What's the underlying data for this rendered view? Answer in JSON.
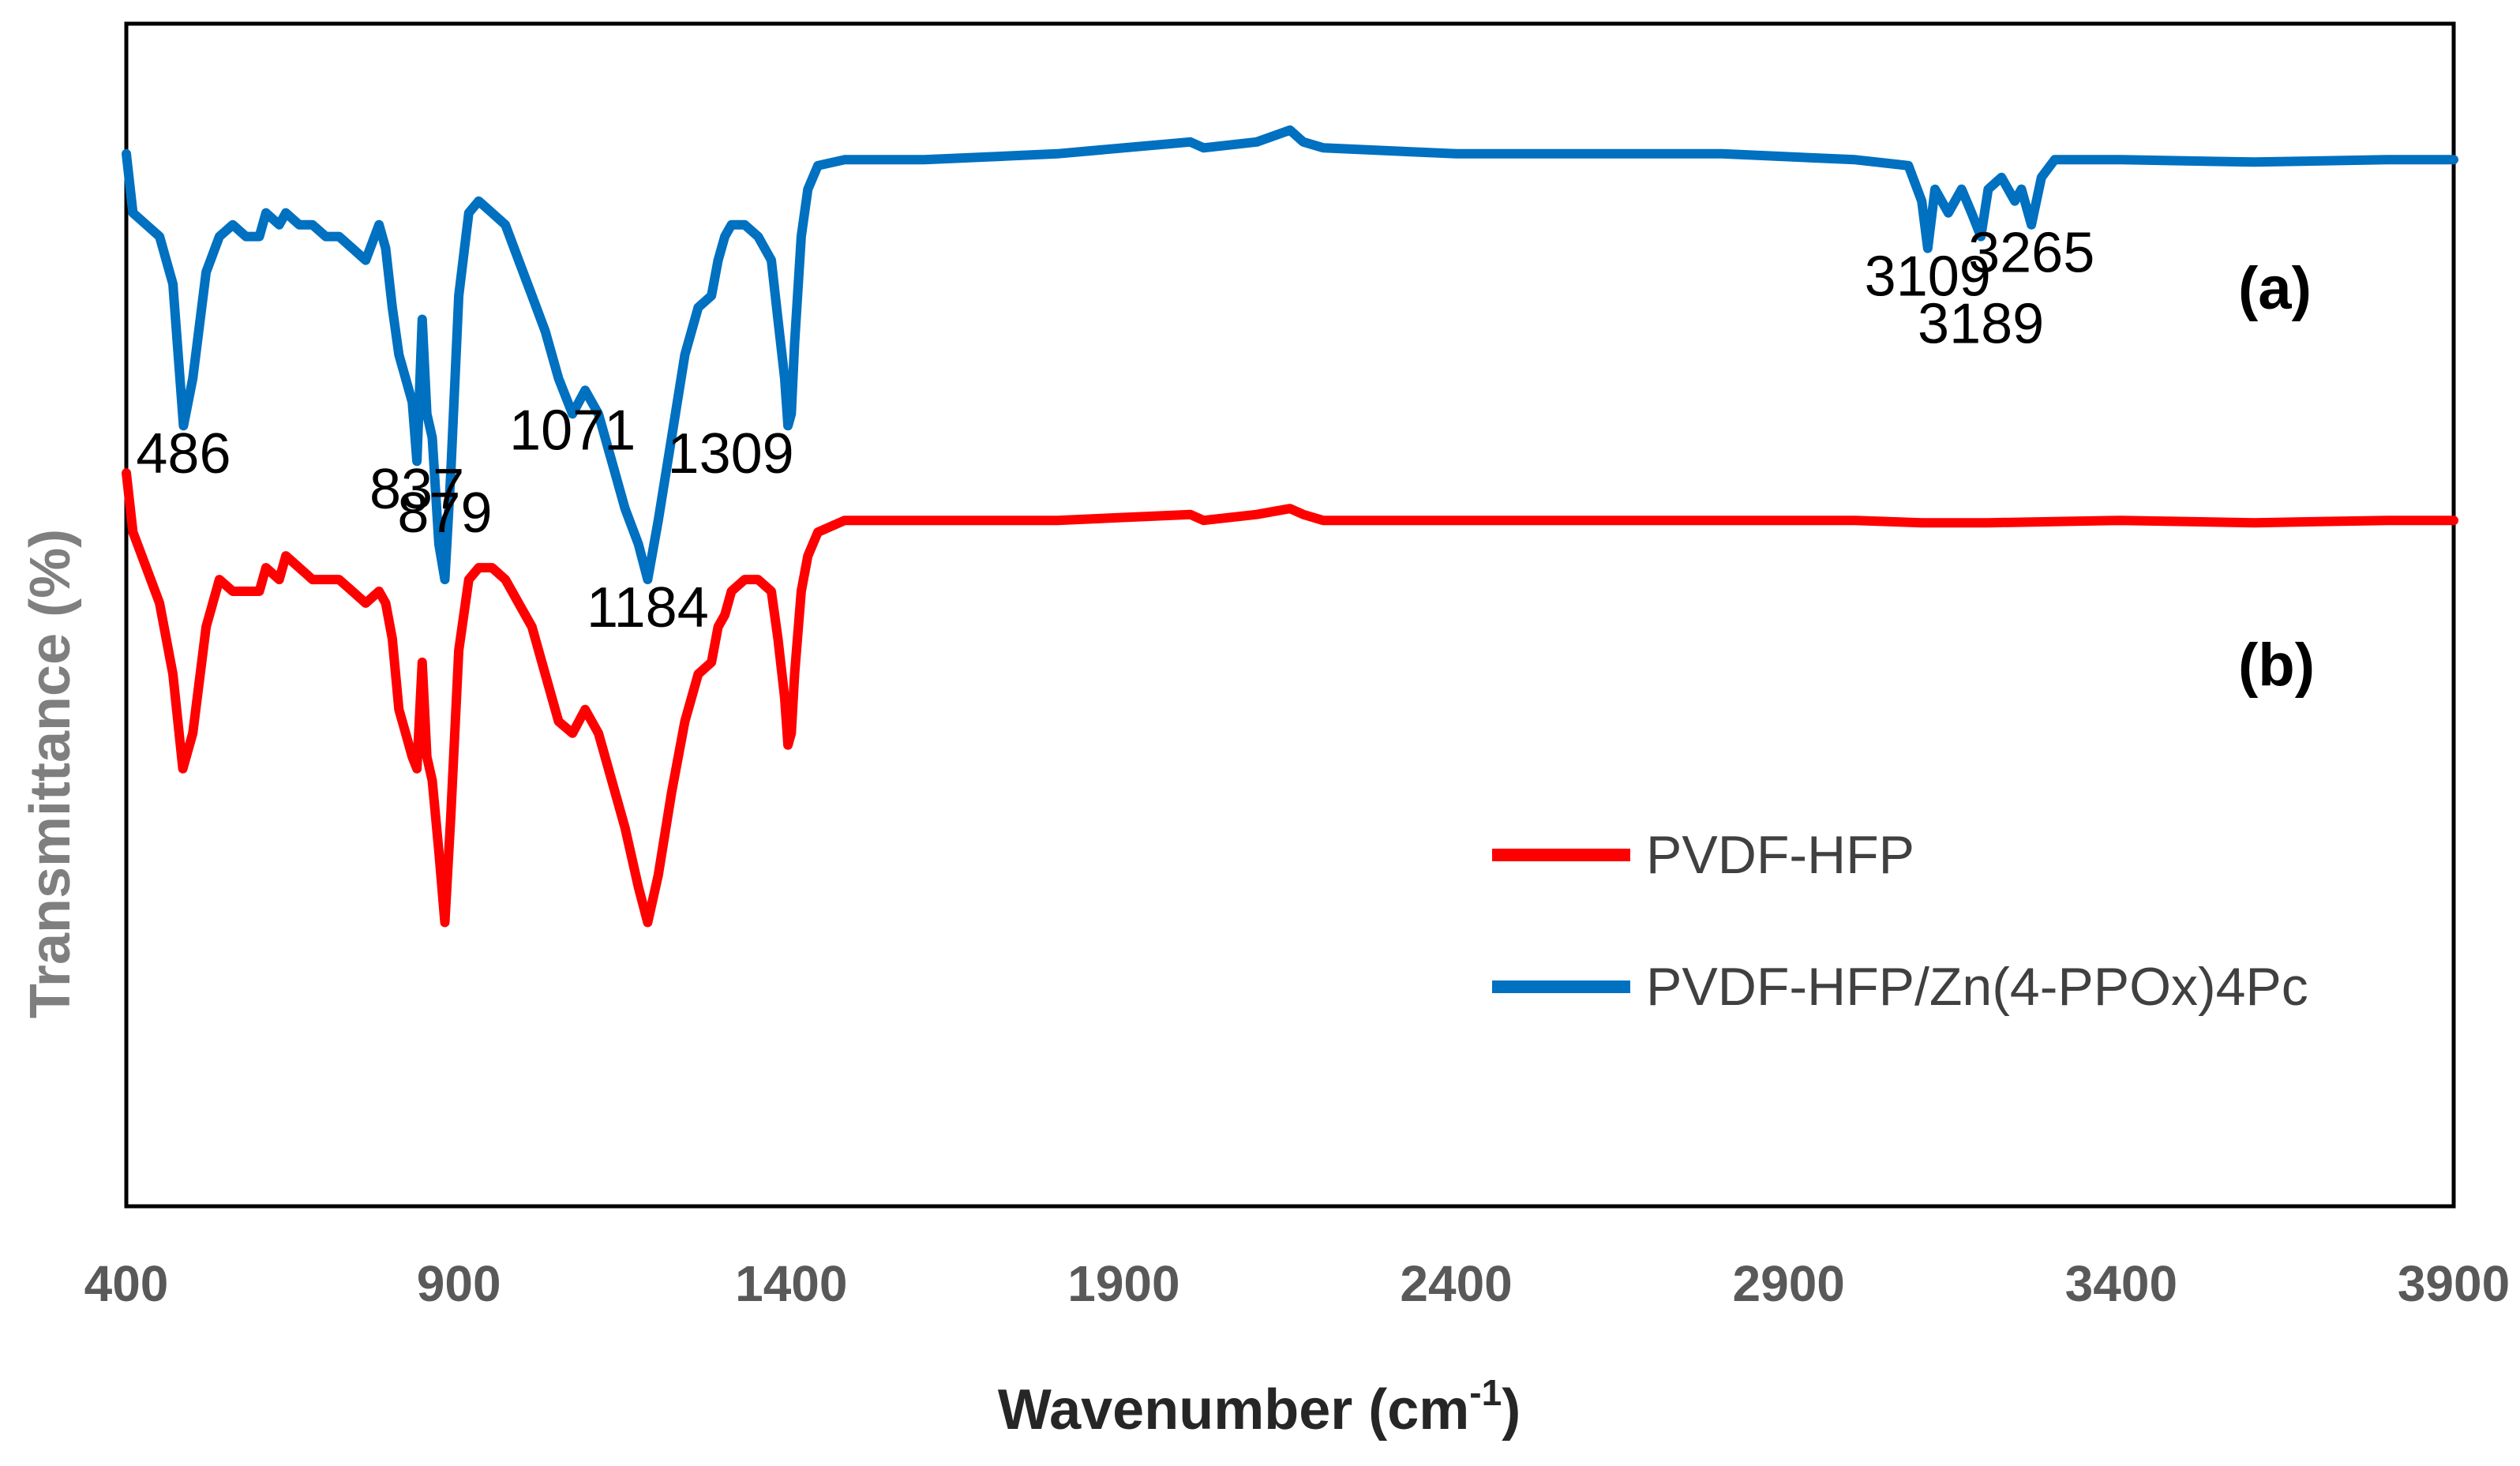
{
  "chart_data": {
    "type": "line",
    "title": "",
    "xlabel": "Wavenumber (cm",
    "xlabel_sup": "-1",
    "xlabel_close": ")",
    "ylabel": "Transmittance (%)",
    "xlim": [
      400,
      3900
    ],
    "ylim": [
      0,
      100
    ],
    "xticks": [
      "400",
      "900",
      "1400",
      "1900",
      "2400",
      "2900",
      "3400",
      "3900"
    ],
    "legend_position": "right-center",
    "series": [
      {
        "name": "PVDF-HFP",
        "tag": "(b)",
        "color": "#ff0000",
        "points": [
          [
            400,
            62
          ],
          [
            410,
            57
          ],
          [
            430,
            54
          ],
          [
            450,
            51
          ],
          [
            470,
            45
          ],
          [
            485,
            37
          ],
          [
            500,
            40
          ],
          [
            520,
            49
          ],
          [
            540,
            53
          ],
          [
            560,
            52
          ],
          [
            580,
            52
          ],
          [
            600,
            52
          ],
          [
            610,
            54
          ],
          [
            630,
            53
          ],
          [
            640,
            55
          ],
          [
            660,
            54
          ],
          [
            680,
            53
          ],
          [
            700,
            53
          ],
          [
            720,
            53
          ],
          [
            740,
            52
          ],
          [
            760,
            51
          ],
          [
            780,
            52
          ],
          [
            790,
            51
          ],
          [
            800,
            48
          ],
          [
            810,
            42
          ],
          [
            820,
            40
          ],
          [
            830,
            38
          ],
          [
            837,
            37
          ],
          [
            845,
            46
          ],
          [
            852,
            38
          ],
          [
            860,
            36
          ],
          [
            870,
            30
          ],
          [
            879,
            24
          ],
          [
            888,
            33
          ],
          [
            900,
            47
          ],
          [
            915,
            53
          ],
          [
            930,
            54
          ],
          [
            950,
            54
          ],
          [
            970,
            53
          ],
          [
            990,
            51
          ],
          [
            1010,
            49
          ],
          [
            1030,
            45
          ],
          [
            1050,
            41
          ],
          [
            1071,
            40
          ],
          [
            1090,
            42
          ],
          [
            1110,
            40
          ],
          [
            1130,
            36
          ],
          [
            1150,
            32
          ],
          [
            1170,
            27
          ],
          [
            1184,
            24
          ],
          [
            1200,
            28
          ],
          [
            1220,
            35
          ],
          [
            1240,
            41
          ],
          [
            1260,
            45
          ],
          [
            1280,
            46
          ],
          [
            1290,
            49
          ],
          [
            1300,
            50
          ],
          [
            1310,
            52
          ],
          [
            1330,
            53
          ],
          [
            1350,
            53
          ],
          [
            1370,
            52
          ],
          [
            1380,
            48
          ],
          [
            1390,
            43
          ],
          [
            1395,
            39
          ],
          [
            1400,
            40
          ],
          [
            1405,
            45
          ],
          [
            1415,
            52
          ],
          [
            1425,
            55
          ],
          [
            1440,
            57
          ],
          [
            1480,
            58
          ],
          [
            1600,
            58
          ],
          [
            1800,
            58
          ],
          [
            2000,
            58.5
          ],
          [
            2020,
            58
          ],
          [
            2100,
            58.5
          ],
          [
            2150,
            59
          ],
          [
            2170,
            58.5
          ],
          [
            2200,
            58
          ],
          [
            2400,
            58
          ],
          [
            2600,
            58
          ],
          [
            2800,
            58
          ],
          [
            3000,
            58
          ],
          [
            3100,
            57.8
          ],
          [
            3200,
            57.8
          ],
          [
            3400,
            58
          ],
          [
            3600,
            57.8
          ],
          [
            3800,
            58
          ],
          [
            3900,
            58
          ]
        ]
      },
      {
        "name": "PVDF-HFP/Zn(4-PPOx)4Pc",
        "tag": "(a)",
        "color": "#0070c0",
        "points": [
          [
            400,
            89
          ],
          [
            410,
            84
          ],
          [
            430,
            83
          ],
          [
            450,
            82
          ],
          [
            470,
            78
          ],
          [
            486,
            66
          ],
          [
            500,
            70
          ],
          [
            520,
            79
          ],
          [
            540,
            82
          ],
          [
            560,
            83
          ],
          [
            580,
            82
          ],
          [
            600,
            82
          ],
          [
            610,
            84
          ],
          [
            630,
            83
          ],
          [
            640,
            84
          ],
          [
            660,
            83
          ],
          [
            680,
            83
          ],
          [
            700,
            82
          ],
          [
            720,
            82
          ],
          [
            740,
            81
          ],
          [
            760,
            80
          ],
          [
            780,
            83
          ],
          [
            790,
            81
          ],
          [
            800,
            76
          ],
          [
            810,
            72
          ],
          [
            820,
            70
          ],
          [
            830,
            68
          ],
          [
            837,
            63
          ],
          [
            845,
            75
          ],
          [
            852,
            67
          ],
          [
            860,
            65
          ],
          [
            870,
            56
          ],
          [
            879,
            53
          ],
          [
            888,
            62
          ],
          [
            900,
            77
          ],
          [
            915,
            84
          ],
          [
            930,
            85
          ],
          [
            950,
            84
          ],
          [
            970,
            83
          ],
          [
            990,
            80
          ],
          [
            1010,
            77
          ],
          [
            1030,
            74
          ],
          [
            1050,
            70
          ],
          [
            1071,
            67
          ],
          [
            1090,
            69
          ],
          [
            1110,
            67
          ],
          [
            1130,
            63
          ],
          [
            1150,
            59
          ],
          [
            1170,
            56
          ],
          [
            1184,
            53
          ],
          [
            1200,
            58
          ],
          [
            1220,
            65
          ],
          [
            1240,
            72
          ],
          [
            1260,
            76
          ],
          [
            1280,
            77
          ],
          [
            1290,
            80
          ],
          [
            1300,
            82
          ],
          [
            1310,
            83
          ],
          [
            1330,
            83
          ],
          [
            1350,
            82
          ],
          [
            1370,
            80
          ],
          [
            1380,
            75
          ],
          [
            1390,
            70
          ],
          [
            1395,
            66
          ],
          [
            1400,
            67
          ],
          [
            1405,
            73
          ],
          [
            1415,
            82
          ],
          [
            1425,
            86
          ],
          [
            1440,
            88
          ],
          [
            1480,
            88.5
          ],
          [
            1600,
            88.5
          ],
          [
            1800,
            89
          ],
          [
            2000,
            90
          ],
          [
            2020,
            89.5
          ],
          [
            2100,
            90
          ],
          [
            2150,
            91
          ],
          [
            2170,
            90
          ],
          [
            2200,
            89.5
          ],
          [
            2400,
            89
          ],
          [
            2600,
            89
          ],
          [
            2800,
            89
          ],
          [
            3000,
            88.5
          ],
          [
            3080,
            88
          ],
          [
            3100,
            85
          ],
          [
            3109,
            81
          ],
          [
            3120,
            86
          ],
          [
            3140,
            84
          ],
          [
            3160,
            86
          ],
          [
            3175,
            84
          ],
          [
            3189,
            82
          ],
          [
            3200,
            86
          ],
          [
            3220,
            87
          ],
          [
            3240,
            85
          ],
          [
            3250,
            86
          ],
          [
            3265,
            83
          ],
          [
            3280,
            87
          ],
          [
            3300,
            88.5
          ],
          [
            3400,
            88.5
          ],
          [
            3600,
            88.3
          ],
          [
            3800,
            88.5
          ],
          [
            3900,
            88.5
          ]
        ]
      }
    ],
    "peak_labels": [
      {
        "text": "486",
        "x": 486,
        "y": 62
      },
      {
        "text": "837",
        "x": 837,
        "y": 59
      },
      {
        "text": "879",
        "x": 879,
        "y": 57
      },
      {
        "text": "1071",
        "x": 1071,
        "y": 64
      },
      {
        "text": "1184",
        "x": 1184,
        "y": 49
      },
      {
        "text": "1309",
        "x": 1309,
        "y": 62
      },
      {
        "text": "3109",
        "x": 3109,
        "y": 77
      },
      {
        "text": "3189",
        "x": 3189,
        "y": 73
      },
      {
        "text": "3265",
        "x": 3265,
        "y": 79
      }
    ]
  }
}
